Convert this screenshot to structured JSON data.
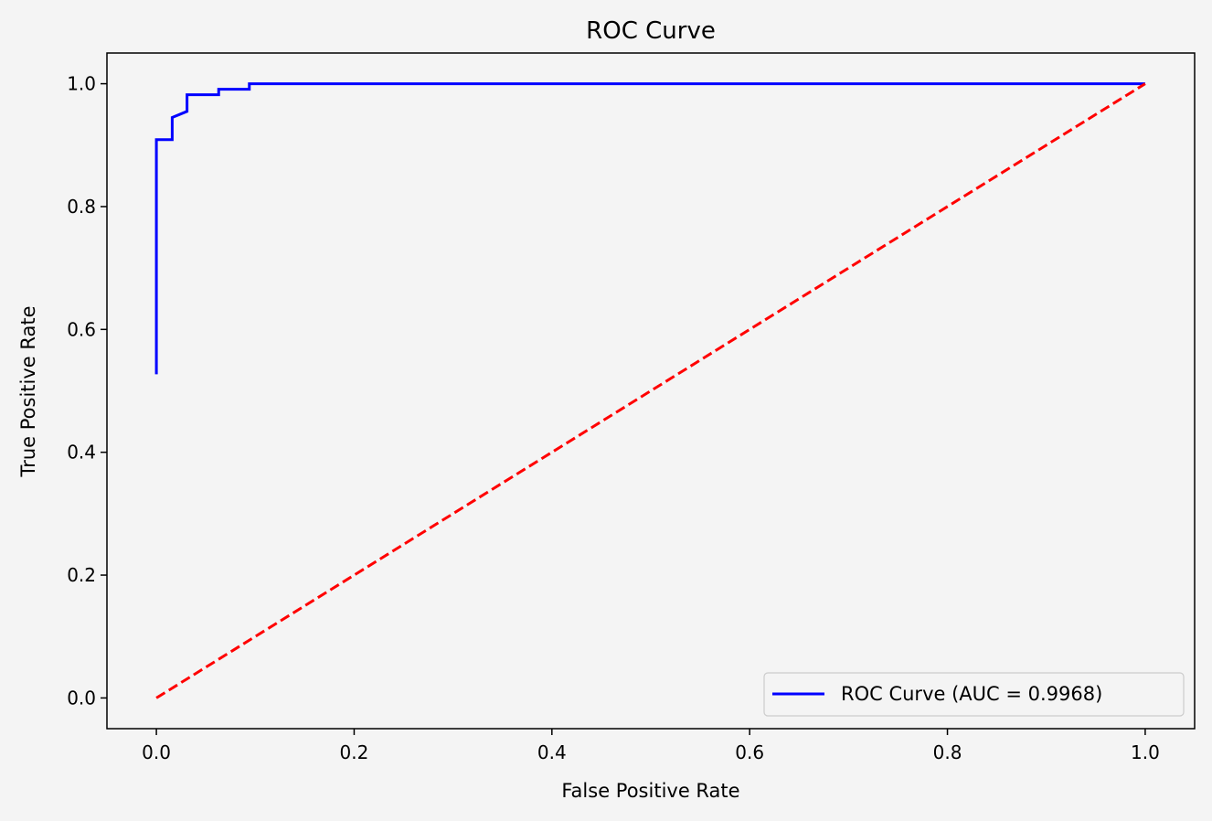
{
  "chart_data": {
    "type": "line",
    "title": "ROC Curve",
    "xlabel": "False Positive Rate",
    "ylabel": "True Positive Rate",
    "xlim": [
      -0.05,
      1.05
    ],
    "ylim": [
      -0.05,
      1.05
    ],
    "xticks": [
      "0.0",
      "0.2",
      "0.4",
      "0.6",
      "0.8",
      "1.0"
    ],
    "yticks": [
      "0.0",
      "0.2",
      "0.4",
      "0.6",
      "0.8",
      "1.0"
    ],
    "grid": false,
    "legend": {
      "location": "lower-right",
      "entries": [
        "ROC Curve (AUC = 0.9968)"
      ]
    },
    "series": [
      {
        "name": "ROC Curve (AUC = 0.9968)",
        "color": "#0000ff",
        "style": "solid",
        "x": [
          0.0,
          0.0,
          0.0,
          0.016,
          0.016,
          0.031,
          0.031,
          0.063,
          0.063,
          0.094,
          0.094,
          1.0
        ],
        "y": [
          0.527,
          0.909,
          0.909,
          0.909,
          0.945,
          0.955,
          0.982,
          0.982,
          0.991,
          0.991,
          1.0,
          1.0
        ]
      },
      {
        "name": "",
        "color": "#ff0000",
        "style": "dashed",
        "x": [
          0.0,
          1.0
        ],
        "y": [
          0.0,
          1.0
        ]
      }
    ]
  }
}
